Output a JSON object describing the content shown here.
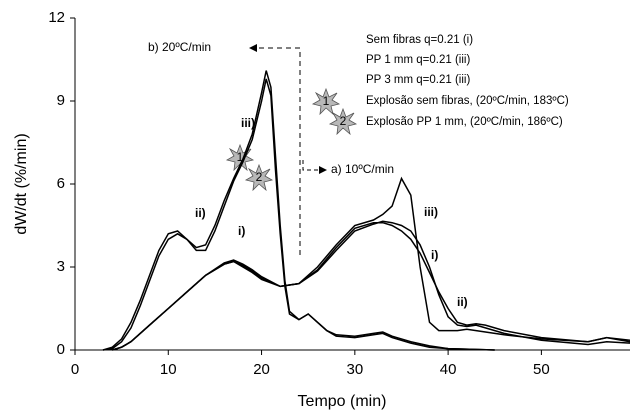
{
  "chart_data": {
    "type": "line",
    "x_label": "Tempo (min)",
    "y_label": "dW/dt (%/min)",
    "xlim": [
      0,
      59.5
    ],
    "xticks": [
      0,
      10,
      20,
      30,
      40,
      50
    ],
    "ylim": [
      0,
      12
    ],
    "yticks": [
      0,
      3,
      6,
      9,
      12
    ],
    "color": "#000000",
    "series": [
      {
        "x": [
          3,
          4,
          5,
          6,
          7,
          8,
          9,
          10,
          11,
          12,
          13,
          14,
          15,
          16,
          17,
          18,
          19,
          20,
          20.5,
          21,
          21.5,
          22,
          22.5,
          23,
          24,
          25,
          26,
          27,
          28,
          30,
          32,
          33,
          34,
          36,
          38,
          40,
          45
        ],
        "values": [
          0,
          0.1,
          0.4,
          1,
          1.8,
          2.7,
          3.6,
          4.2,
          4.3,
          4,
          3.7,
          3.8,
          4.5,
          5.4,
          6.2,
          6.9,
          7.8,
          9.3,
          10.1,
          9.5,
          7,
          4.5,
          2.5,
          1.4,
          1.1,
          1.3,
          1,
          0.7,
          0.55,
          0.5,
          0.6,
          0.65,
          0.5,
          0.3,
          0.15,
          0.05,
          0
        ]
      },
      {
        "x": [
          3,
          4,
          5,
          6,
          7,
          8,
          9,
          10,
          11,
          12,
          13,
          14,
          15,
          16,
          17,
          18,
          19,
          20,
          20.5,
          21,
          21.5,
          22,
          22.5,
          23,
          24,
          25,
          26,
          27,
          28,
          30,
          32,
          33,
          34,
          36,
          38,
          40,
          45
        ],
        "values": [
          0,
          0.05,
          0.3,
          0.8,
          1.6,
          2.5,
          3.4,
          4,
          4.2,
          4,
          3.6,
          3.6,
          4.3,
          5.2,
          6.1,
          6.8,
          7.6,
          9,
          9.8,
          9.2,
          6.5,
          4.2,
          2.3,
          1.3,
          1.1,
          1.3,
          1,
          0.7,
          0.5,
          0.45,
          0.55,
          0.6,
          0.45,
          0.25,
          0.1,
          0.05,
          0
        ]
      },
      {
        "x": [
          4,
          5,
          6,
          8,
          10,
          12,
          14,
          16,
          17,
          18,
          19,
          20,
          22,
          24,
          26,
          28,
          30,
          32,
          33,
          34,
          35,
          36,
          37,
          38,
          39,
          40,
          41,
          42,
          43,
          44,
          46,
          50,
          55,
          57,
          59.5
        ],
        "values": [
          0,
          0.1,
          0.3,
          0.9,
          1.5,
          2.1,
          2.7,
          3.1,
          3.2,
          3.05,
          2.85,
          2.6,
          2.3,
          2.4,
          2.9,
          3.7,
          4.4,
          4.6,
          4.6,
          4.5,
          4.3,
          4,
          3.5,
          2.8,
          2.1,
          1.5,
          1,
          0.9,
          0.95,
          0.9,
          0.7,
          0.45,
          0.3,
          0.45,
          0.35
        ]
      },
      {
        "x": [
          4,
          5,
          6,
          8,
          10,
          12,
          14,
          16,
          17,
          18,
          19,
          20,
          22,
          24,
          26,
          28,
          30,
          32,
          33,
          34,
          35,
          36,
          37,
          38,
          39,
          40,
          41,
          42,
          43,
          44,
          46,
          50,
          55,
          57,
          59.5
        ],
        "values": [
          0,
          0.1,
          0.3,
          0.9,
          1.5,
          2.1,
          2.7,
          3.15,
          3.25,
          3.1,
          2.9,
          2.65,
          2.3,
          2.4,
          2.85,
          3.6,
          4.3,
          4.55,
          4.65,
          4.6,
          4.5,
          4.3,
          3.8,
          3,
          2,
          1.2,
          0.9,
          0.85,
          0.9,
          0.8,
          0.6,
          0.35,
          0.2,
          0.3,
          0.25
        ]
      },
      {
        "x": [
          4,
          5,
          6,
          8,
          10,
          12,
          14,
          16,
          17,
          18,
          19,
          20,
          22,
          24,
          26,
          28,
          30,
          32,
          33,
          34,
          35,
          36,
          37,
          38,
          39,
          40,
          41,
          42,
          43,
          44,
          46,
          50,
          55,
          57,
          59.5
        ],
        "values": [
          0,
          0.1,
          0.3,
          0.9,
          1.5,
          2.1,
          2.7,
          3.1,
          3.2,
          3,
          2.8,
          2.55,
          2.3,
          2.4,
          3,
          3.8,
          4.5,
          4.7,
          4.9,
          5.2,
          6.2,
          5.6,
          3,
          1,
          0.7,
          0.7,
          0.7,
          0.75,
          0.7,
          0.65,
          0.55,
          0.4,
          0.3,
          0.45,
          0.3
        ]
      }
    ],
    "legend": [
      "Sem fibras  q=0.21 (i)",
      "PP 1 mm  q=0.21 (iii)",
      "PP 3 mm  q=0.21 (iii)",
      "Explosão sem fibras, (20ºC/min, 183ºC)",
      "Explosão PP 1 mm, (20ºC/min, 186ºC)"
    ],
    "explosion_markers": [
      "1",
      "2"
    ],
    "rate_labels": [
      "b) 20ºC/min",
      "a) 10ºC/min"
    ],
    "curve_labels": [
      "ii)",
      "iii)",
      "i)",
      "iii)",
      "i)",
      "ii)"
    ]
  }
}
